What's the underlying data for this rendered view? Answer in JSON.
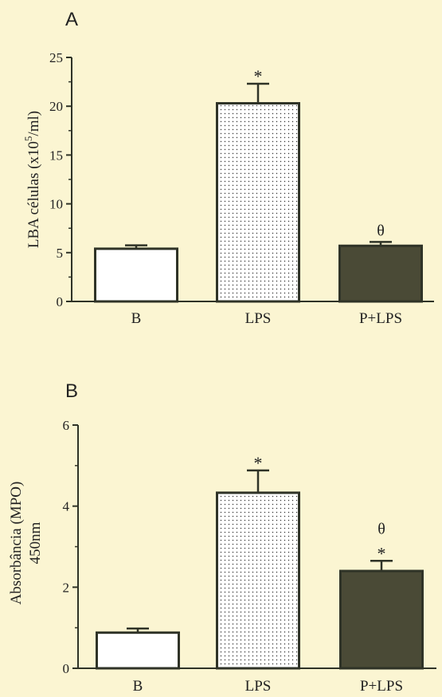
{
  "background": "#fbf5d2",
  "chart_data": [
    {
      "panel": "A",
      "type": "bar",
      "ylabel": "LBA células (x10",
      "ylabel_sup": "5",
      "ylabel_tail": "/ml)",
      "categories": [
        "B",
        "LPS",
        "P+LPS"
      ],
      "values": [
        5.4,
        20.3,
        5.7
      ],
      "errors": [
        0.35,
        2.0,
        0.4
      ],
      "annotations": [
        "",
        "*",
        "θ"
      ],
      "ylim": [
        0,
        25
      ],
      "yticks": [
        0,
        5,
        10,
        15,
        20,
        25
      ],
      "bar_styles": [
        "open",
        "dotted",
        "filled"
      ]
    },
    {
      "panel": "B",
      "type": "bar",
      "ylabel": "Absorbância (MPO)",
      "ylabel2": "450nm",
      "categories": [
        "B",
        "LPS",
        "P+LPS"
      ],
      "values": [
        0.88,
        4.33,
        2.4
      ],
      "errors": [
        0.1,
        0.55,
        0.25
      ],
      "annotations": [
        "",
        "*",
        "θ\n*"
      ],
      "ylim": [
        0,
        6
      ],
      "yticks": [
        0,
        2,
        4,
        6
      ],
      "bar_styles": [
        "open",
        "dotted",
        "filled"
      ]
    }
  ],
  "colors": {
    "axis": "#2f3327",
    "filled": "#4a4a36",
    "open": "#ffffff"
  }
}
